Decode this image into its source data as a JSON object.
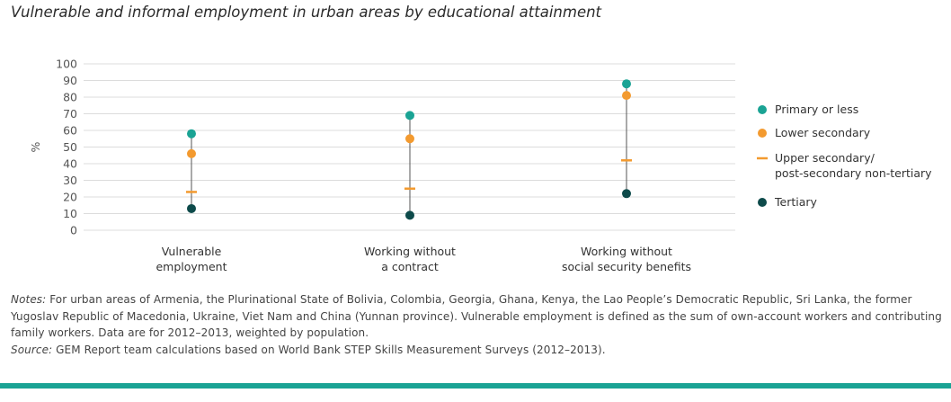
{
  "title": "Vulnerable and informal employment in urban areas by educational attainment",
  "chart_data": {
    "type": "scatter",
    "ylabel": "%",
    "ylim": [
      0,
      100
    ],
    "yticks": [
      0,
      10,
      20,
      30,
      40,
      50,
      60,
      70,
      80,
      90,
      100
    ],
    "grid": true,
    "legend_position": "right",
    "categories": [
      [
        "Vulnerable",
        "employment"
      ],
      [
        "Working without",
        "a contract"
      ],
      [
        "Working without",
        "social security benefits"
      ]
    ],
    "series": [
      {
        "name": "Primary or less",
        "marker": "circle",
        "color": "#1aa394",
        "values": [
          58,
          69,
          88
        ]
      },
      {
        "name": "Lower secondary",
        "marker": "circle",
        "color": "#f39a2f",
        "values": [
          46,
          55,
          81
        ]
      },
      {
        "name": [
          "Upper secondary/",
          "post-secondary non-tertiary"
        ],
        "marker": "dash",
        "color": "#f39a2f",
        "values": [
          23,
          25,
          42
        ]
      },
      {
        "name": "Tertiary",
        "marker": "circle",
        "color": "#0d4a4a",
        "values": [
          13,
          9,
          22
        ]
      }
    ]
  },
  "notes": {
    "notes_label": "Notes:",
    "notes_text": " For urban areas of Armenia, the Plurinational State of Bolivia, Colombia, Georgia, Ghana, Kenya, the Lao People’s Democratic Republic, Sri Lanka, the former Yugoslav Republic of Macedonia, Ukraine, Viet Nam and China (Yunnan province). Vulnerable employment is defined as the sum of own-account workers and contributing family workers. Data are for 2012–2013, weighted by population.",
    "source_label": "Source:",
    "source_text": " GEM Report team calculations based on World Bank STEP Skills Measurement Surveys (2012–2013)."
  }
}
